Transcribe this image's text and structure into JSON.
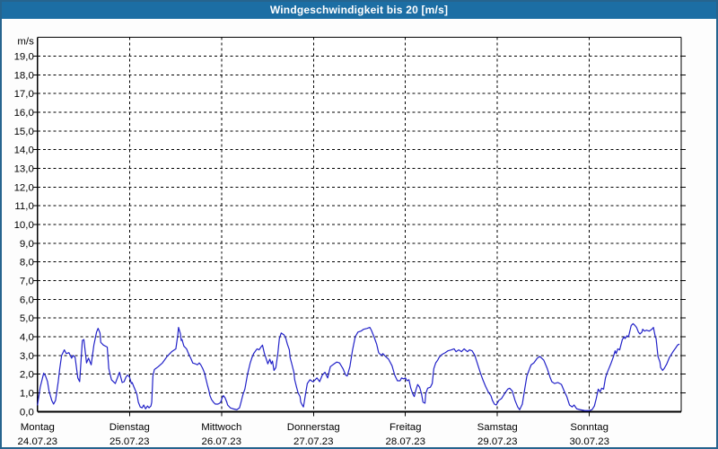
{
  "window": {
    "title": "Windgeschwindigkeit bis 20 [m/s]"
  },
  "colors": {
    "titlebar_bg": "#1c6ea4",
    "titlebar_text": "#ffffff",
    "panel_border": "#26648e",
    "panel_bg": "#fdfdfd",
    "plot_bg": "#ffffff",
    "grid": "#000000",
    "axis": "#000000",
    "text": "#000000",
    "series_line": "#2121c8"
  },
  "chart_data": {
    "type": "line",
    "title": "Windgeschwindigkeit bis 20 [m/s]",
    "y_unit": "m/s",
    "ylim": [
      0,
      20
    ],
    "y_tick_step": 1,
    "y_tick_labels": [
      "0,0",
      "1,0",
      "2,0",
      "3,0",
      "4,0",
      "5,0",
      "6,0",
      "7,0",
      "8,0",
      "9,0",
      "10,0",
      "11,0",
      "12,0",
      "13,0",
      "14,0",
      "15,0",
      "16,0",
      "17,0",
      "18,0",
      "19,0"
    ],
    "x_unit": "hours",
    "xlim": [
      0,
      168
    ],
    "hours_per_day": 24,
    "grid": "dashed",
    "legend": "none",
    "days": [
      {
        "name": "Montag",
        "date": "24.07.23"
      },
      {
        "name": "Dienstag",
        "date": "25.07.23"
      },
      {
        "name": "Mittwoch",
        "date": "26.07.23"
      },
      {
        "name": "Donnerstag",
        "date": "27.07.23"
      },
      {
        "name": "Freitag",
        "date": "28.07.23"
      },
      {
        "name": "Samstag",
        "date": "29.07.23"
      },
      {
        "name": "Sonntag",
        "date": "30.07.23"
      }
    ],
    "series": [
      {
        "name": "Windgeschwindigkeit",
        "unit": "m/s",
        "points": [
          [
            0.0,
            0.35
          ],
          [
            0.7,
            1.3
          ],
          [
            1.2,
            1.7
          ],
          [
            1.6,
            2.05
          ],
          [
            2.1,
            1.9
          ],
          [
            2.6,
            1.6
          ],
          [
            3.0,
            1.1
          ],
          [
            3.7,
            0.6
          ],
          [
            4.2,
            0.4
          ],
          [
            4.7,
            0.6
          ],
          [
            5.4,
            1.6
          ],
          [
            5.8,
            2.3
          ],
          [
            6.3,
            3.0
          ],
          [
            7.0,
            3.3
          ],
          [
            7.5,
            3.1
          ],
          [
            8.2,
            3.15
          ],
          [
            8.9,
            2.85
          ],
          [
            9.3,
            3.0
          ],
          [
            9.8,
            2.9
          ],
          [
            10.5,
            1.8
          ],
          [
            11.0,
            1.6
          ],
          [
            11.7,
            3.8
          ],
          [
            12.1,
            3.85
          ],
          [
            12.8,
            2.6
          ],
          [
            13.3,
            2.85
          ],
          [
            14.0,
            2.5
          ],
          [
            14.7,
            3.55
          ],
          [
            15.4,
            4.25
          ],
          [
            15.8,
            4.45
          ],
          [
            16.3,
            4.2
          ],
          [
            16.5,
            3.7
          ],
          [
            17.2,
            3.55
          ],
          [
            18.2,
            3.45
          ],
          [
            18.6,
            2.3
          ],
          [
            19.3,
            1.7
          ],
          [
            20.3,
            1.5
          ],
          [
            21.2,
            2.0
          ],
          [
            21.4,
            2.1
          ],
          [
            22.1,
            1.55
          ],
          [
            22.6,
            1.6
          ],
          [
            23.1,
            1.85
          ],
          [
            23.5,
            1.95
          ],
          [
            24.0,
            1.85
          ],
          [
            24.5,
            1.5
          ],
          [
            24.7,
            1.55
          ],
          [
            25.2,
            1.3
          ],
          [
            25.9,
            0.95
          ],
          [
            26.3,
            0.5
          ],
          [
            26.8,
            0.25
          ],
          [
            27.3,
            0.2
          ],
          [
            27.7,
            0.35
          ],
          [
            28.2,
            0.15
          ],
          [
            28.7,
            0.3
          ],
          [
            29.1,
            0.2
          ],
          [
            29.6,
            0.3
          ],
          [
            29.8,
            0.5
          ],
          [
            30.1,
            1.9
          ],
          [
            30.5,
            2.25
          ],
          [
            31.5,
            2.4
          ],
          [
            32.6,
            2.6
          ],
          [
            33.8,
            2.95
          ],
          [
            35.0,
            3.2
          ],
          [
            36.1,
            3.35
          ],
          [
            36.6,
            4.1
          ],
          [
            36.8,
            4.5
          ],
          [
            37.3,
            4.15
          ],
          [
            37.5,
            3.8
          ],
          [
            37.7,
            3.85
          ],
          [
            38.2,
            3.5
          ],
          [
            38.9,
            3.35
          ],
          [
            39.4,
            3.1
          ],
          [
            40.1,
            2.8
          ],
          [
            40.5,
            2.6
          ],
          [
            41.2,
            2.55
          ],
          [
            41.7,
            2.5
          ],
          [
            42.2,
            2.6
          ],
          [
            42.6,
            2.5
          ],
          [
            43.1,
            2.3
          ],
          [
            43.6,
            2.05
          ],
          [
            44.0,
            1.7
          ],
          [
            44.3,
            1.45
          ],
          [
            44.7,
            1.15
          ],
          [
            45.0,
            0.85
          ],
          [
            45.4,
            0.65
          ],
          [
            45.9,
            0.5
          ],
          [
            46.4,
            0.4
          ],
          [
            47.1,
            0.4
          ],
          [
            47.5,
            0.45
          ],
          [
            47.8,
            0.5
          ],
          [
            48.2,
            0.75
          ],
          [
            48.5,
            0.85
          ],
          [
            48.9,
            0.75
          ],
          [
            49.4,
            0.5
          ],
          [
            49.6,
            0.35
          ],
          [
            50.3,
            0.2
          ],
          [
            51.0,
            0.15
          ],
          [
            52.0,
            0.1
          ],
          [
            52.7,
            0.2
          ],
          [
            53.1,
            0.5
          ],
          [
            53.6,
            0.9
          ],
          [
            54.1,
            1.2
          ],
          [
            54.8,
            2.0
          ],
          [
            55.5,
            2.6
          ],
          [
            55.9,
            2.85
          ],
          [
            56.4,
            3.1
          ],
          [
            56.9,
            3.25
          ],
          [
            57.3,
            3.35
          ],
          [
            57.8,
            3.3
          ],
          [
            58.3,
            3.45
          ],
          [
            58.7,
            3.55
          ],
          [
            59.2,
            3.1
          ],
          [
            59.7,
            2.8
          ],
          [
            60.1,
            2.55
          ],
          [
            60.6,
            2.8
          ],
          [
            61.0,
            2.55
          ],
          [
            61.3,
            2.7
          ],
          [
            61.7,
            2.2
          ],
          [
            62.2,
            2.35
          ],
          [
            62.7,
            3.1
          ],
          [
            63.1,
            3.9
          ],
          [
            63.6,
            4.2
          ],
          [
            64.3,
            4.1
          ],
          [
            64.8,
            3.9
          ],
          [
            65.2,
            3.6
          ],
          [
            65.7,
            3.3
          ],
          [
            65.9,
            2.9
          ],
          [
            66.4,
            2.5
          ],
          [
            66.9,
            2.1
          ],
          [
            67.1,
            1.7
          ],
          [
            67.6,
            1.3
          ],
          [
            68.0,
            1.0
          ],
          [
            68.5,
            0.8
          ],
          [
            68.7,
            0.5
          ],
          [
            69.2,
            0.3
          ],
          [
            69.4,
            0.25
          ],
          [
            69.9,
            0.9
          ],
          [
            70.4,
            1.5
          ],
          [
            71.1,
            1.7
          ],
          [
            71.8,
            1.6
          ],
          [
            72.2,
            1.65
          ],
          [
            72.9,
            1.8
          ],
          [
            73.6,
            1.6
          ],
          [
            74.3,
            1.95
          ],
          [
            75.0,
            2.1
          ],
          [
            75.7,
            1.8
          ],
          [
            76.4,
            2.4
          ],
          [
            77.4,
            2.55
          ],
          [
            78.1,
            2.65
          ],
          [
            78.8,
            2.6
          ],
          [
            79.7,
            2.3
          ],
          [
            80.4,
            1.95
          ],
          [
            80.8,
            1.9
          ],
          [
            81.5,
            2.4
          ],
          [
            82.2,
            3.3
          ],
          [
            82.9,
            4.0
          ],
          [
            83.6,
            4.25
          ],
          [
            84.4,
            4.3
          ],
          [
            85.1,
            4.4
          ],
          [
            86.0,
            4.45
          ],
          [
            86.7,
            4.5
          ],
          [
            87.1,
            4.35
          ],
          [
            87.8,
            4.0
          ],
          [
            88.5,
            3.6
          ],
          [
            89.0,
            3.15
          ],
          [
            89.7,
            3.0
          ],
          [
            90.1,
            3.1
          ],
          [
            90.8,
            2.95
          ],
          [
            91.6,
            2.8
          ],
          [
            92.5,
            2.45
          ],
          [
            93.2,
            1.95
          ],
          [
            93.9,
            1.65
          ],
          [
            94.6,
            1.65
          ],
          [
            95.0,
            1.8
          ],
          [
            95.5,
            1.75
          ],
          [
            96.0,
            1.8
          ],
          [
            96.4,
            1.65
          ],
          [
            96.9,
            1.7
          ],
          [
            97.4,
            1.25
          ],
          [
            97.9,
            0.95
          ],
          [
            98.3,
            0.8
          ],
          [
            98.8,
            1.2
          ],
          [
            99.2,
            1.45
          ],
          [
            99.7,
            1.3
          ],
          [
            100.2,
            0.95
          ],
          [
            100.6,
            0.5
          ],
          [
            101.1,
            0.45
          ],
          [
            101.3,
            0.95
          ],
          [
            101.8,
            1.25
          ],
          [
            102.5,
            1.3
          ],
          [
            103.0,
            1.5
          ],
          [
            103.4,
            2.3
          ],
          [
            103.9,
            2.6
          ],
          [
            104.4,
            2.75
          ],
          [
            104.8,
            2.9
          ],
          [
            105.5,
            3.05
          ],
          [
            106.4,
            3.15
          ],
          [
            107.1,
            3.25
          ],
          [
            108.0,
            3.3
          ],
          [
            108.7,
            3.35
          ],
          [
            109.2,
            3.2
          ],
          [
            109.9,
            3.3
          ],
          [
            110.6,
            3.2
          ],
          [
            111.3,
            3.35
          ],
          [
            112.2,
            3.2
          ],
          [
            112.7,
            3.3
          ],
          [
            113.4,
            3.25
          ],
          [
            114.1,
            3.0
          ],
          [
            114.8,
            2.55
          ],
          [
            115.5,
            2.1
          ],
          [
            116.2,
            1.7
          ],
          [
            116.9,
            1.35
          ],
          [
            117.6,
            1.05
          ],
          [
            118.3,
            0.85
          ],
          [
            118.7,
            0.6
          ],
          [
            119.2,
            0.4
          ],
          [
            119.7,
            0.35
          ],
          [
            120.4,
            0.6
          ],
          [
            121.1,
            0.7
          ],
          [
            122.0,
            1.0
          ],
          [
            122.7,
            1.2
          ],
          [
            123.2,
            1.25
          ],
          [
            123.9,
            1.1
          ],
          [
            124.6,
            0.6
          ],
          [
            125.3,
            0.25
          ],
          [
            125.8,
            0.1
          ],
          [
            126.5,
            0.4
          ],
          [
            127.2,
            1.3
          ],
          [
            127.7,
            1.9
          ],
          [
            128.4,
            2.3
          ],
          [
            128.8,
            2.5
          ],
          [
            129.5,
            2.6
          ],
          [
            130.4,
            2.85
          ],
          [
            131.1,
            2.95
          ],
          [
            132.1,
            2.75
          ],
          [
            133.0,
            2.3
          ],
          [
            133.7,
            1.85
          ],
          [
            134.2,
            1.6
          ],
          [
            134.9,
            1.5
          ],
          [
            135.8,
            1.55
          ],
          [
            136.7,
            1.45
          ],
          [
            137.4,
            1.1
          ],
          [
            138.1,
            0.8
          ],
          [
            138.8,
            0.35
          ],
          [
            139.5,
            0.25
          ],
          [
            140.0,
            0.35
          ],
          [
            140.7,
            0.15
          ],
          [
            141.6,
            0.1
          ],
          [
            142.8,
            0.05
          ],
          [
            144.0,
            0.05
          ],
          [
            144.7,
            0.1
          ],
          [
            145.3,
            0.3
          ],
          [
            145.8,
            0.7
          ],
          [
            146.3,
            1.2
          ],
          [
            146.8,
            1.05
          ],
          [
            147.2,
            1.25
          ],
          [
            147.7,
            1.2
          ],
          [
            148.2,
            1.8
          ],
          [
            148.6,
            2.05
          ],
          [
            149.6,
            2.55
          ],
          [
            150.3,
            2.95
          ],
          [
            150.7,
            3.25
          ],
          [
            151.0,
            3.1
          ],
          [
            151.4,
            3.35
          ],
          [
            151.9,
            3.3
          ],
          [
            152.6,
            3.85
          ],
          [
            153.1,
            4.0
          ],
          [
            153.3,
            3.9
          ],
          [
            153.8,
            4.05
          ],
          [
            154.2,
            4.0
          ],
          [
            154.9,
            4.6
          ],
          [
            155.4,
            4.7
          ],
          [
            155.9,
            4.6
          ],
          [
            156.3,
            4.5
          ],
          [
            156.8,
            4.25
          ],
          [
            157.2,
            4.15
          ],
          [
            157.7,
            4.25
          ],
          [
            157.9,
            4.4
          ],
          [
            158.4,
            4.3
          ],
          [
            158.9,
            4.35
          ],
          [
            159.6,
            4.3
          ],
          [
            160.3,
            4.4
          ],
          [
            160.7,
            4.5
          ],
          [
            161.2,
            4.0
          ],
          [
            161.4,
            3.9
          ],
          [
            161.9,
            2.95
          ],
          [
            162.4,
            2.65
          ],
          [
            162.6,
            2.35
          ],
          [
            163.1,
            2.2
          ],
          [
            163.5,
            2.3
          ],
          [
            164.2,
            2.55
          ],
          [
            164.9,
            2.9
          ],
          [
            165.8,
            3.2
          ],
          [
            166.5,
            3.4
          ],
          [
            167.0,
            3.55
          ],
          [
            167.4,
            3.6
          ]
        ]
      }
    ]
  }
}
